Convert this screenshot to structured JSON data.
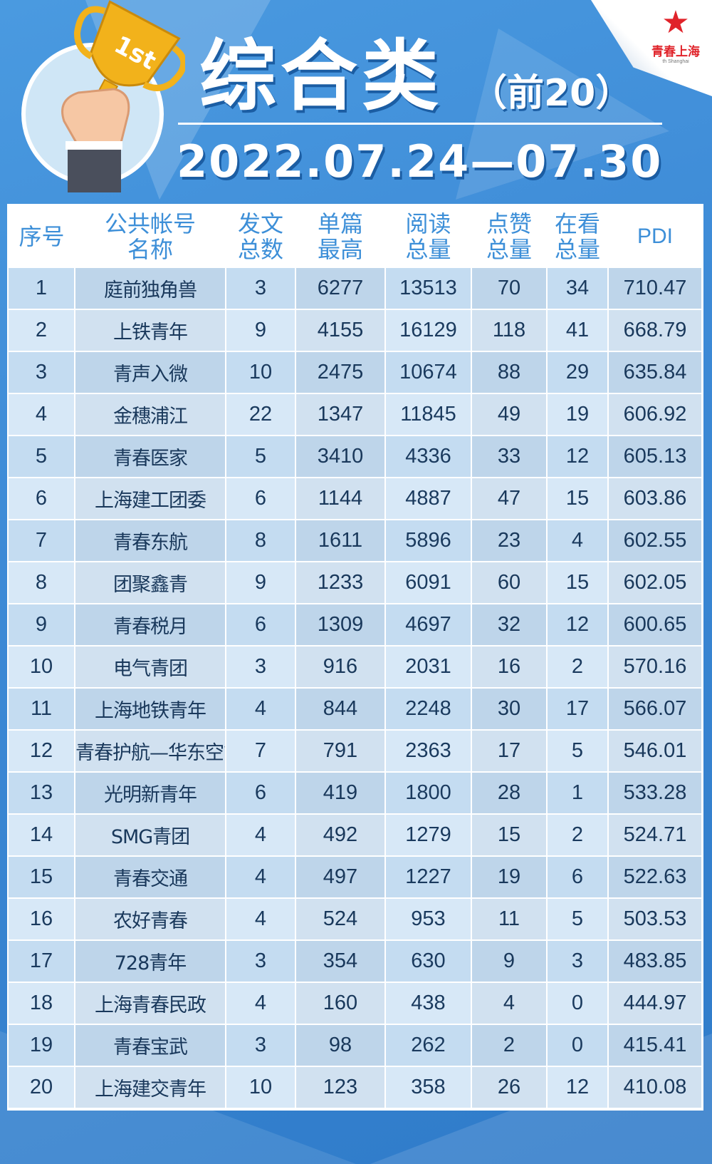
{
  "logo": {
    "text": "青春上海",
    "sub": "th Shanghai"
  },
  "badge": {
    "label": "1st"
  },
  "title": "综合类",
  "subtitle": "（前20）",
  "date": "2022.07.24—07.30",
  "table": {
    "headers": [
      [
        "序号"
      ],
      [
        "公共帐号",
        "名称"
      ],
      [
        "发文",
        "总数"
      ],
      [
        "单篇",
        "最高"
      ],
      [
        "阅读",
        "总量"
      ],
      [
        "点赞",
        "总量"
      ],
      [
        "在看",
        "总量"
      ],
      [
        "PDI"
      ]
    ],
    "rows": [
      [
        "1",
        "庭前独角兽",
        "3",
        "6277",
        "13513",
        "70",
        "34",
        "710.47"
      ],
      [
        "2",
        "上铁青年",
        "9",
        "4155",
        "16129",
        "118",
        "41",
        "668.79"
      ],
      [
        "3",
        "青声入微",
        "10",
        "2475",
        "10674",
        "88",
        "29",
        "635.84"
      ],
      [
        "4",
        "金穗浦江",
        "22",
        "1347",
        "11845",
        "49",
        "19",
        "606.92"
      ],
      [
        "5",
        "青春医家",
        "5",
        "3410",
        "4336",
        "33",
        "12",
        "605.13"
      ],
      [
        "6",
        "上海建工团委",
        "6",
        "1144",
        "4887",
        "47",
        "15",
        "603.86"
      ],
      [
        "7",
        "青春东航",
        "8",
        "1611",
        "5896",
        "23",
        "4",
        "602.55"
      ],
      [
        "8",
        "团聚鑫青",
        "9",
        "1233",
        "6091",
        "60",
        "15",
        "602.05"
      ],
      [
        "9",
        "青春税月",
        "6",
        "1309",
        "4697",
        "32",
        "12",
        "600.65"
      ],
      [
        "10",
        "电气青团",
        "3",
        "916",
        "2031",
        "16",
        "2",
        "570.16"
      ],
      [
        "11",
        "上海地铁青年",
        "4",
        "844",
        "2248",
        "30",
        "17",
        "566.07"
      ],
      [
        "12",
        "青春护航—华东空管",
        "7",
        "791",
        "2363",
        "17",
        "5",
        "546.01"
      ],
      [
        "13",
        "光明新青年",
        "6",
        "419",
        "1800",
        "28",
        "1",
        "533.28"
      ],
      [
        "14",
        "SMG青团",
        "4",
        "492",
        "1279",
        "15",
        "2",
        "524.71"
      ],
      [
        "15",
        "青春交通",
        "4",
        "497",
        "1227",
        "19",
        "6",
        "522.63"
      ],
      [
        "16",
        "农好青春",
        "4",
        "524",
        "953",
        "11",
        "5",
        "503.53"
      ],
      [
        "17",
        "728青年",
        "3",
        "354",
        "630",
        "9",
        "3",
        "483.85"
      ],
      [
        "18",
        "上海青春民政",
        "4",
        "160",
        "438",
        "4",
        "0",
        "444.97"
      ],
      [
        "19",
        "青春宝武",
        "3",
        "98",
        "262",
        "2",
        "0",
        "415.41"
      ],
      [
        "20",
        "上海建交青年",
        "10",
        "123",
        "358",
        "26",
        "12",
        "410.08"
      ]
    ]
  }
}
